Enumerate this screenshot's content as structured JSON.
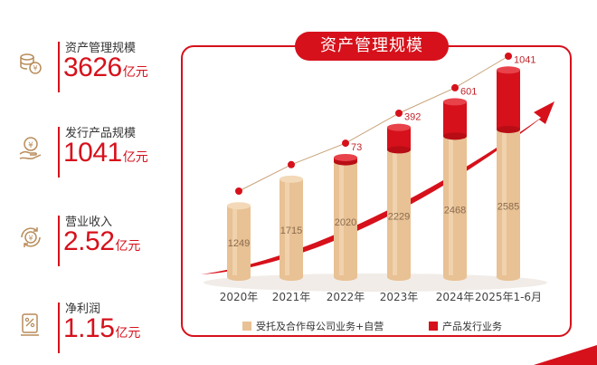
{
  "stats": [
    {
      "label": "资产管理规模",
      "value": "3626",
      "unit": "亿元",
      "icon": "coins-icon"
    },
    {
      "label": "发行产品规模",
      "value": "1041",
      "unit": "亿元",
      "icon": "hand-coin-icon"
    },
    {
      "label": "营业收入",
      "value": "2.52",
      "unit": "亿元",
      "icon": "yen-cycle-icon"
    },
    {
      "label": "净利润",
      "value": "1.15",
      "unit": "亿元",
      "icon": "percent-document-icon"
    }
  ],
  "colors": {
    "accent": "#d6111b",
    "bar_base": "#e8c194",
    "bar_top": "#d6111b",
    "line": "#c9a37a"
  },
  "chart_data": {
    "type": "bar",
    "title": "资产管理规模",
    "categories": [
      "2020年",
      "2021年",
      "2022年",
      "2023年",
      "2024年",
      "2025年1-6月"
    ],
    "series": [
      {
        "name": "受托及合作母公司业务+自营",
        "values": [
          1249,
          1715,
          2020,
          2229,
          2468,
          2585
        ]
      },
      {
        "name": "产品发行业务",
        "values": [
          0,
          0,
          73,
          392,
          601,
          1041
        ]
      }
    ],
    "stacked": true,
    "totals_line": [
      1249,
      1715,
      2093,
      2621,
      3069,
      3626
    ],
    "legend_position": "bottom",
    "grid": false
  }
}
